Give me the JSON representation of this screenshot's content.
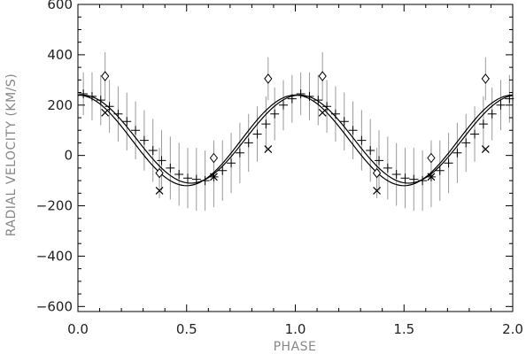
{
  "chart_data": {
    "type": "scatter",
    "title": "",
    "xlabel": "PHASE",
    "ylabel": "RADIAL VELOCITY (KM/S)",
    "xlim": [
      0.0,
      2.0
    ],
    "ylim": [
      -620,
      600
    ],
    "x_ticks": [
      "0.0",
      "0.5",
      "1.0",
      "1.5",
      "2.0"
    ],
    "y_ticks": [
      "600",
      "400",
      "200",
      "0",
      "−200",
      "−400",
      "−600"
    ],
    "grid": false,
    "legend": "none",
    "colors": {
      "ink": "#000000",
      "errorbar": "#9a9a9a",
      "axis_title": "#888888"
    },
    "series": [
      {
        "marker": "plus-with-errorbar",
        "points": [
          {
            "x": 0.025,
            "y": 245,
            "err": 85
          },
          {
            "x": 0.065,
            "y": 235,
            "err": 95
          },
          {
            "x": 0.105,
            "y": 220,
            "err": 100
          },
          {
            "x": 0.145,
            "y": 195,
            "err": 105
          },
          {
            "x": 0.185,
            "y": 165,
            "err": 110
          },
          {
            "x": 0.225,
            "y": 135,
            "err": 115
          },
          {
            "x": 0.265,
            "y": 100,
            "err": 115
          },
          {
            "x": 0.305,
            "y": 60,
            "err": 120
          },
          {
            "x": 0.345,
            "y": 20,
            "err": 125
          },
          {
            "x": 0.385,
            "y": -20,
            "err": 120
          },
          {
            "x": 0.425,
            "y": -50,
            "err": 125
          },
          {
            "x": 0.465,
            "y": -75,
            "err": 125
          },
          {
            "x": 0.505,
            "y": -90,
            "err": 120
          },
          {
            "x": 0.545,
            "y": -95,
            "err": 125
          },
          {
            "x": 0.585,
            "y": -100,
            "err": 120
          },
          {
            "x": 0.625,
            "y": -85,
            "err": 120
          },
          {
            "x": 0.665,
            "y": -60,
            "err": 120
          },
          {
            "x": 0.705,
            "y": -30,
            "err": 120
          },
          {
            "x": 0.745,
            "y": 10,
            "err": 120
          },
          {
            "x": 0.785,
            "y": 50,
            "err": 115
          },
          {
            "x": 0.825,
            "y": 85,
            "err": 110
          },
          {
            "x": 0.865,
            "y": 125,
            "err": 110
          },
          {
            "x": 0.905,
            "y": 165,
            "err": 105
          },
          {
            "x": 0.945,
            "y": 200,
            "err": 100
          },
          {
            "x": 0.985,
            "y": 225,
            "err": 95
          },
          {
            "x": 1.025,
            "y": 245,
            "err": 85
          },
          {
            "x": 1.065,
            "y": 235,
            "err": 95
          },
          {
            "x": 1.105,
            "y": 220,
            "err": 100
          },
          {
            "x": 1.145,
            "y": 195,
            "err": 105
          },
          {
            "x": 1.185,
            "y": 165,
            "err": 110
          },
          {
            "x": 1.225,
            "y": 135,
            "err": 115
          },
          {
            "x": 1.265,
            "y": 100,
            "err": 115
          },
          {
            "x": 1.305,
            "y": 60,
            "err": 120
          },
          {
            "x": 1.345,
            "y": 20,
            "err": 125
          },
          {
            "x": 1.385,
            "y": -20,
            "err": 120
          },
          {
            "x": 1.425,
            "y": -50,
            "err": 125
          },
          {
            "x": 1.465,
            "y": -75,
            "err": 125
          },
          {
            "x": 1.505,
            "y": -90,
            "err": 120
          },
          {
            "x": 1.545,
            "y": -95,
            "err": 125
          },
          {
            "x": 1.585,
            "y": -100,
            "err": 120
          },
          {
            "x": 1.625,
            "y": -85,
            "err": 120
          },
          {
            "x": 1.665,
            "y": -60,
            "err": 120
          },
          {
            "x": 1.705,
            "y": -30,
            "err": 120
          },
          {
            "x": 1.745,
            "y": 10,
            "err": 120
          },
          {
            "x": 1.785,
            "y": 50,
            "err": 115
          },
          {
            "x": 1.825,
            "y": 85,
            "err": 110
          },
          {
            "x": 1.865,
            "y": 125,
            "err": 110
          },
          {
            "x": 1.905,
            "y": 165,
            "err": 105
          },
          {
            "x": 1.945,
            "y": 200,
            "err": 100
          },
          {
            "x": 1.985,
            "y": 225,
            "err": 95
          }
        ]
      },
      {
        "marker": "diamond-with-errorbar",
        "points": [
          {
            "x": 0.125,
            "y": 315,
            "err": 95
          },
          {
            "x": 0.375,
            "y": -70,
            "err": 100
          },
          {
            "x": 0.625,
            "y": -10,
            "err": 70
          },
          {
            "x": 0.875,
            "y": 305,
            "err": 85
          },
          {
            "x": 1.125,
            "y": 315,
            "err": 95
          },
          {
            "x": 1.375,
            "y": -70,
            "err": 100
          },
          {
            "x": 1.625,
            "y": -10,
            "err": 70
          },
          {
            "x": 1.875,
            "y": 305,
            "err": 85
          }
        ]
      },
      {
        "marker": "cross",
        "points": [
          {
            "x": 0.125,
            "y": 170
          },
          {
            "x": 0.375,
            "y": -140
          },
          {
            "x": 0.625,
            "y": -85
          },
          {
            "x": 0.875,
            "y": 25
          },
          {
            "x": 1.125,
            "y": 170
          },
          {
            "x": 1.375,
            "y": -140
          },
          {
            "x": 1.625,
            "y": -85
          },
          {
            "x": 1.875,
            "y": 25
          }
        ]
      }
    ],
    "curves": [
      {
        "style": "solid",
        "gamma": 60,
        "amplitude": 180,
        "phase_max": 0.0
      },
      {
        "style": "solid",
        "gamma": 65,
        "amplitude": 175,
        "phase_max": 0.02
      }
    ]
  }
}
